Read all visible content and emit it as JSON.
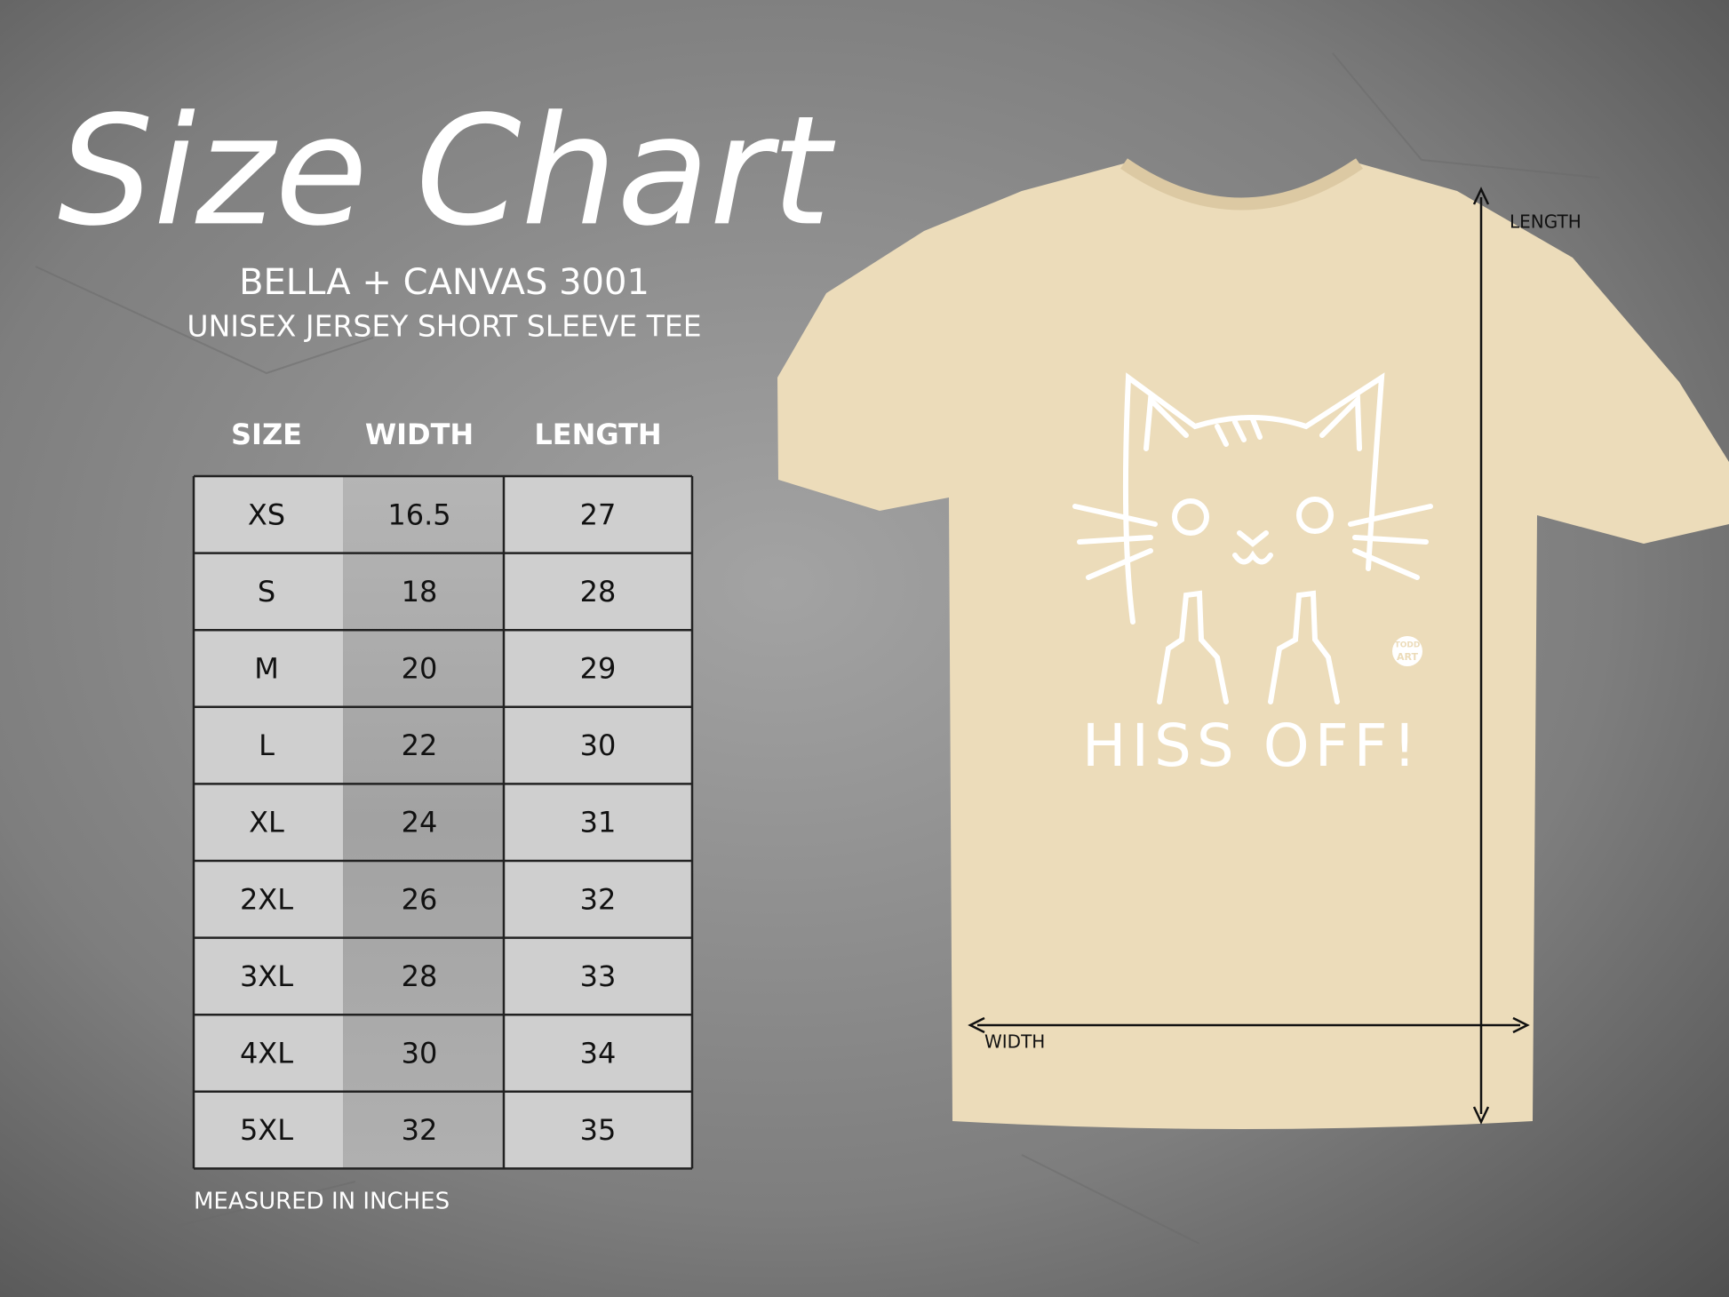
{
  "header": {
    "title": "Size Chart",
    "brand": "BELLA + CANVAS 3001",
    "subtitle": "UNISEX JERSEY SHORT SLEEVE TEE"
  },
  "table": {
    "columns": [
      "SIZE",
      "WIDTH",
      "LENGTH"
    ],
    "rows": [
      [
        "XS",
        "16.5",
        "27"
      ],
      [
        "S",
        "18",
        "28"
      ],
      [
        "M",
        "20",
        "29"
      ],
      [
        "L",
        "22",
        "30"
      ],
      [
        "XL",
        "24",
        "31"
      ],
      [
        "2XL",
        "26",
        "32"
      ],
      [
        "3XL",
        "28",
        "33"
      ],
      [
        "4XL",
        "30",
        "34"
      ],
      [
        "5XL",
        "32",
        "35"
      ]
    ]
  },
  "footnote": "MEASURED IN INCHES",
  "shirt": {
    "print_text": "HISS OFF!",
    "logo": [
      "TODD",
      "ART"
    ],
    "length_label": "LENGTH",
    "width_label": "WIDTH"
  }
}
